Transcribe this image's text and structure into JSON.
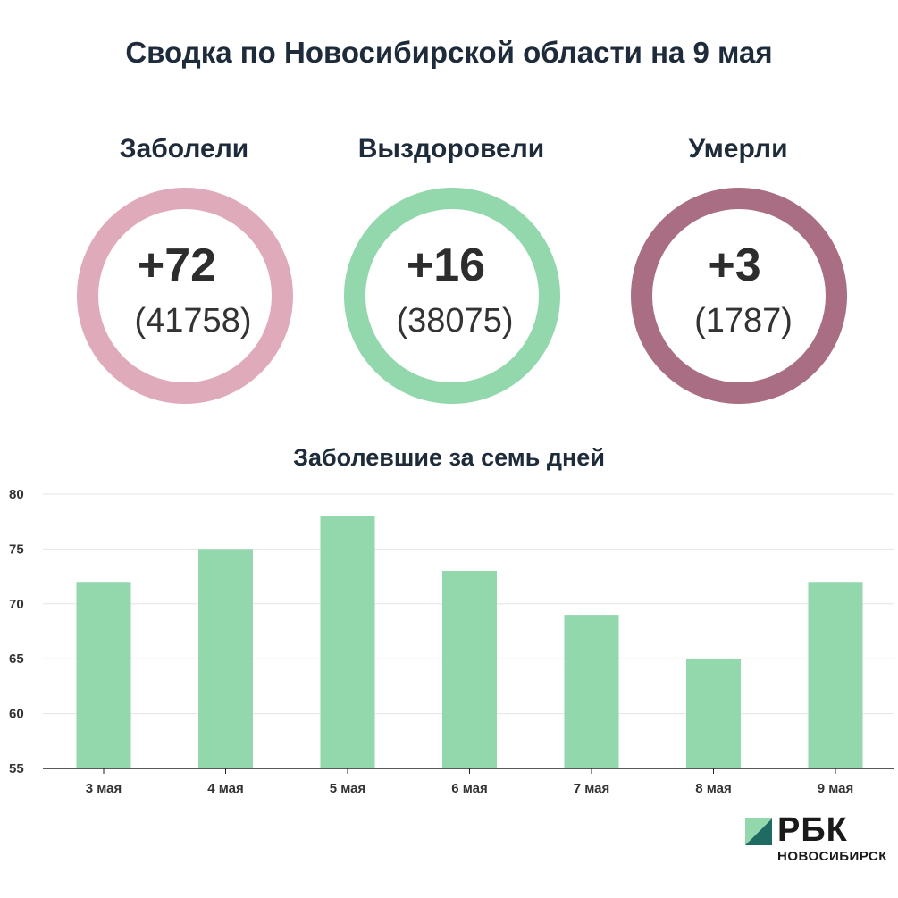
{
  "header": {
    "title": "Сводка по Новосибирской области на 9 мая"
  },
  "stats": [
    {
      "label": "Заболели",
      "delta": "+72",
      "total": "(41758)",
      "color": "#dfaab9"
    },
    {
      "label": "Выздоровели",
      "delta": "+16",
      "total": "(38075)",
      "color": "#93d7ad"
    },
    {
      "label": "Умерли",
      "delta": "+3",
      "total": "(1787)",
      "color": "#a96e84"
    }
  ],
  "chart_data": {
    "type": "bar",
    "title": "Заболевшие за семь дней",
    "categories": [
      "3 мая",
      "4 мая",
      "5 мая",
      "6 мая",
      "7 мая",
      "8 мая",
      "9 мая"
    ],
    "values": [
      72,
      75,
      78,
      73,
      69,
      65,
      72
    ],
    "ylim": [
      55,
      80
    ],
    "yticks": [
      55,
      60,
      65,
      70,
      75,
      80
    ],
    "xlabel": "",
    "ylabel": "",
    "grid": true,
    "bar_color": "#93d7ad"
  },
  "logo": {
    "brand": "РБК",
    "subtitle": "НОВОСИБИРСК",
    "mark_colors": [
      "#93d7ad",
      "#1f6b63"
    ]
  }
}
